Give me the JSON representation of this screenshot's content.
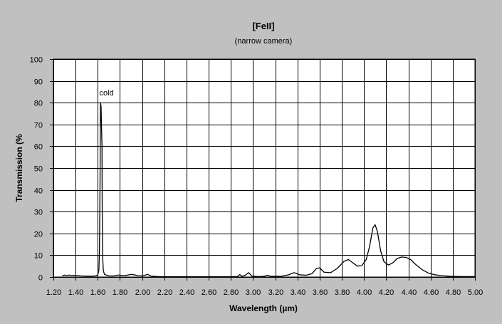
{
  "chart_data": {
    "type": "line",
    "title": "[FeII]",
    "subtitle": "(narrow camera)",
    "xlabel": "Wavelength (µm)",
    "ylabel": "Transmission (%",
    "xlim": [
      1.2,
      5.0
    ],
    "ylim": [
      0,
      100
    ],
    "x_ticks": [
      "1.20",
      "1.40",
      "1.60",
      "1.80",
      "2.00",
      "2.20",
      "2.40",
      "2.60",
      "2.80",
      "3.00",
      "3.20",
      "3.40",
      "3.60",
      "3.80",
      "4.00",
      "4.20",
      "4.40",
      "4.60",
      "4.80",
      "5.00"
    ],
    "y_ticks": [
      "0",
      "10",
      "20",
      "30",
      "40",
      "50",
      "60",
      "70",
      "80",
      "90",
      "100"
    ],
    "grid": true,
    "annotations": [
      {
        "text": "cold",
        "x": 1.64,
        "y": 80
      }
    ],
    "series": [
      {
        "color": "#000000",
        "points": [
          [
            1.28,
            0.5
          ],
          [
            1.3,
            0.9
          ],
          [
            1.32,
            0.6
          ],
          [
            1.34,
            0.9
          ],
          [
            1.36,
            0.6
          ],
          [
            1.38,
            0.8
          ],
          [
            1.4,
            0.6
          ],
          [
            1.42,
            0.7
          ],
          [
            1.45,
            0.5
          ],
          [
            1.5,
            0.4
          ],
          [
            1.55,
            0.4
          ],
          [
            1.58,
            0.5
          ],
          [
            1.6,
            1.0
          ],
          [
            1.61,
            3
          ],
          [
            1.615,
            12
          ],
          [
            1.62,
            40
          ],
          [
            1.625,
            80
          ],
          [
            1.63,
            78
          ],
          [
            1.633,
            70
          ],
          [
            1.638,
            60
          ],
          [
            1.64,
            30
          ],
          [
            1.645,
            8
          ],
          [
            1.65,
            3
          ],
          [
            1.66,
            1.2
          ],
          [
            1.7,
            0.5
          ],
          [
            1.75,
            0.5
          ],
          [
            1.78,
            0.9
          ],
          [
            1.8,
            0.8
          ],
          [
            1.83,
            0.6
          ],
          [
            1.86,
            0.8
          ],
          [
            1.9,
            1.2
          ],
          [
            1.93,
            1.0
          ],
          [
            1.96,
            0.6
          ],
          [
            2.0,
            0.5
          ],
          [
            2.05,
            1.2
          ],
          [
            2.08,
            0.4
          ],
          [
            2.15,
            0.2
          ],
          [
            2.4,
            0.1
          ],
          [
            2.8,
            0.1
          ],
          [
            2.86,
            0.2
          ],
          [
            2.88,
            1.1
          ],
          [
            2.9,
            0.3
          ],
          [
            2.93,
            0.8
          ],
          [
            2.96,
            2.0
          ],
          [
            2.99,
            0.4
          ],
          [
            3.05,
            0.2
          ],
          [
            3.1,
            0.3
          ],
          [
            3.13,
            0.8
          ],
          [
            3.16,
            0.3
          ],
          [
            3.25,
            0.3
          ],
          [
            3.32,
            1.0
          ],
          [
            3.37,
            2.0
          ],
          [
            3.42,
            1.0
          ],
          [
            3.48,
            0.8
          ],
          [
            3.53,
            1.5
          ],
          [
            3.57,
            3.8
          ],
          [
            3.6,
            4.2
          ],
          [
            3.64,
            2.2
          ],
          [
            3.7,
            2.0
          ],
          [
            3.76,
            4.0
          ],
          [
            3.82,
            7.2
          ],
          [
            3.86,
            8.0
          ],
          [
            3.9,
            6.5
          ],
          [
            3.94,
            5.0
          ],
          [
            3.98,
            5.2
          ],
          [
            4.02,
            8.0
          ],
          [
            4.05,
            14.0
          ],
          [
            4.08,
            22.5
          ],
          [
            4.1,
            24.0
          ],
          [
            4.12,
            21.0
          ],
          [
            4.15,
            12.0
          ],
          [
            4.18,
            7.0
          ],
          [
            4.22,
            5.5
          ],
          [
            4.26,
            6.5
          ],
          [
            4.3,
            8.5
          ],
          [
            4.34,
            9.2
          ],
          [
            4.38,
            9.0
          ],
          [
            4.42,
            8.0
          ],
          [
            4.46,
            6.0
          ],
          [
            4.52,
            3.5
          ],
          [
            4.58,
            1.8
          ],
          [
            4.64,
            1.0
          ],
          [
            4.7,
            0.6
          ],
          [
            4.78,
            0.3
          ],
          [
            4.9,
            0.2
          ],
          [
            5.0,
            0.2
          ]
        ]
      }
    ]
  }
}
